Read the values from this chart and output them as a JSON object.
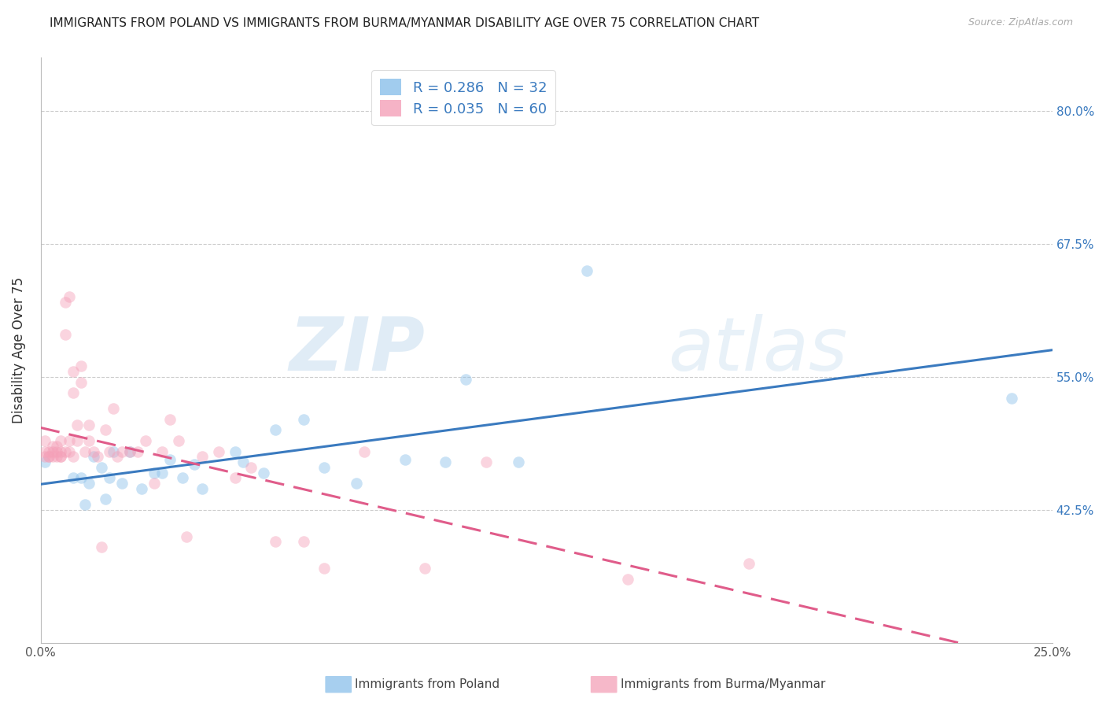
{
  "title": "IMMIGRANTS FROM POLAND VS IMMIGRANTS FROM BURMA/MYANMAR DISABILITY AGE OVER 75 CORRELATION CHART",
  "source": "Source: ZipAtlas.com",
  "ylabel": "Disability Age Over 75",
  "xlabel_poland": "Immigrants from Poland",
  "xlabel_burma": "Immigrants from Burma/Myanmar",
  "xlim": [
    0.0,
    0.25
  ],
  "ylim": [
    0.3,
    0.85
  ],
  "yticks": [
    0.425,
    0.55,
    0.675,
    0.8
  ],
  "ytick_labels": [
    "42.5%",
    "55.0%",
    "67.5%",
    "80.0%"
  ],
  "xticks": [
    0.0,
    0.05,
    0.1,
    0.15,
    0.2,
    0.25
  ],
  "xtick_labels": [
    "0.0%",
    "",
    "",
    "",
    "",
    "25.0%"
  ],
  "poland_R": 0.286,
  "poland_N": 32,
  "burma_R": 0.035,
  "burma_N": 60,
  "poland_color": "#8ac0ea",
  "burma_color": "#f4a0b8",
  "poland_line_color": "#3a7abf",
  "burma_line_color": "#e05c8a",
  "poland_x": [
    0.001,
    0.008,
    0.01,
    0.011,
    0.012,
    0.013,
    0.015,
    0.016,
    0.017,
    0.018,
    0.02,
    0.022,
    0.025,
    0.028,
    0.03,
    0.032,
    0.035,
    0.038,
    0.04,
    0.048,
    0.05,
    0.055,
    0.058,
    0.065,
    0.07,
    0.078,
    0.09,
    0.1,
    0.105,
    0.118,
    0.135,
    0.24
  ],
  "poland_y": [
    0.47,
    0.455,
    0.455,
    0.43,
    0.45,
    0.475,
    0.465,
    0.435,
    0.455,
    0.48,
    0.45,
    0.48,
    0.445,
    0.46,
    0.46,
    0.472,
    0.455,
    0.468,
    0.445,
    0.48,
    0.47,
    0.46,
    0.5,
    0.51,
    0.465,
    0.45,
    0.472,
    0.47,
    0.548,
    0.47,
    0.65,
    0.53
  ],
  "burma_x": [
    0.001,
    0.001,
    0.001,
    0.002,
    0.002,
    0.002,
    0.003,
    0.003,
    0.003,
    0.004,
    0.004,
    0.004,
    0.005,
    0.005,
    0.005,
    0.005,
    0.006,
    0.006,
    0.006,
    0.007,
    0.007,
    0.007,
    0.008,
    0.008,
    0.008,
    0.009,
    0.009,
    0.01,
    0.01,
    0.011,
    0.012,
    0.012,
    0.013,
    0.014,
    0.015,
    0.016,
    0.017,
    0.018,
    0.019,
    0.02,
    0.022,
    0.024,
    0.026,
    0.028,
    0.03,
    0.032,
    0.034,
    0.036,
    0.04,
    0.044,
    0.048,
    0.052,
    0.058,
    0.065,
    0.07,
    0.08,
    0.095,
    0.11,
    0.145,
    0.175
  ],
  "burma_y": [
    0.475,
    0.48,
    0.49,
    0.475,
    0.48,
    0.475,
    0.475,
    0.48,
    0.485,
    0.475,
    0.485,
    0.48,
    0.475,
    0.49,
    0.48,
    0.475,
    0.59,
    0.48,
    0.62,
    0.625,
    0.48,
    0.49,
    0.475,
    0.535,
    0.555,
    0.505,
    0.49,
    0.545,
    0.56,
    0.48,
    0.505,
    0.49,
    0.48,
    0.475,
    0.39,
    0.5,
    0.48,
    0.52,
    0.475,
    0.48,
    0.48,
    0.48,
    0.49,
    0.45,
    0.48,
    0.51,
    0.49,
    0.4,
    0.475,
    0.48,
    0.455,
    0.465,
    0.395,
    0.395,
    0.37,
    0.48,
    0.37,
    0.47,
    0.36,
    0.375
  ],
  "watermark_zip": "ZIP",
  "watermark_atlas": "atlas",
  "background_color": "#ffffff",
  "grid_color": "#cccccc",
  "title_fontsize": 11,
  "label_fontsize": 12,
  "tick_fontsize": 11,
  "legend_fontsize": 13,
  "marker_size": 110,
  "marker_alpha": 0.45
}
